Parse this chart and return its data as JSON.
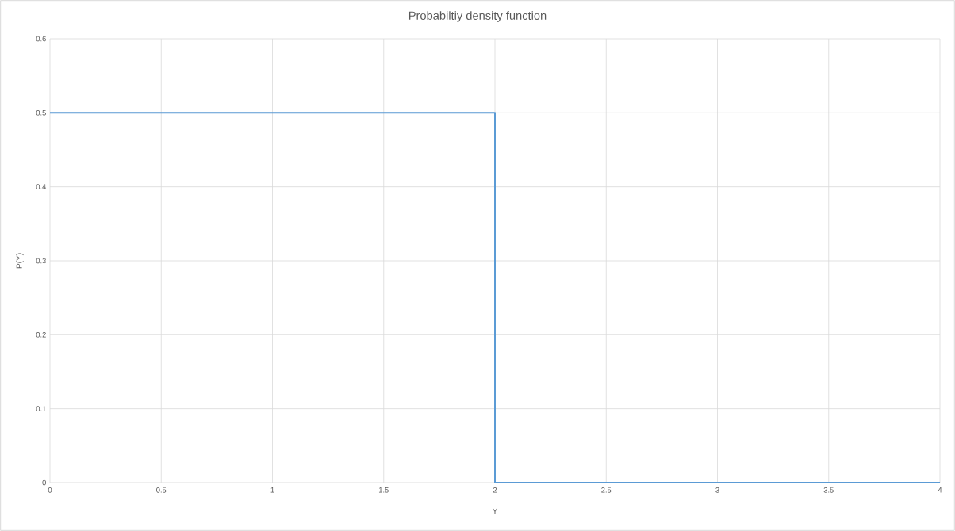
{
  "chart_data": {
    "type": "line",
    "title": "Probabiltiy density function",
    "xlabel": "Y",
    "ylabel": "P(Y)",
    "x": [
      0,
      2,
      2,
      4
    ],
    "series": [
      {
        "color": "#5b9bd5",
        "values": [
          0.5,
          0.5,
          0,
          0
        ]
      }
    ],
    "xlim": [
      0,
      4
    ],
    "xticks": [
      0,
      0.5,
      1,
      1.5,
      2,
      2.5,
      3,
      3.5,
      4
    ],
    "ylim": [
      0,
      0.6
    ],
    "yticks": [
      0,
      0.1,
      0.2,
      0.3,
      0.4,
      0.5,
      0.6
    ],
    "grid": true,
    "legend": false,
    "marker": "none",
    "line_style": "solid"
  }
}
